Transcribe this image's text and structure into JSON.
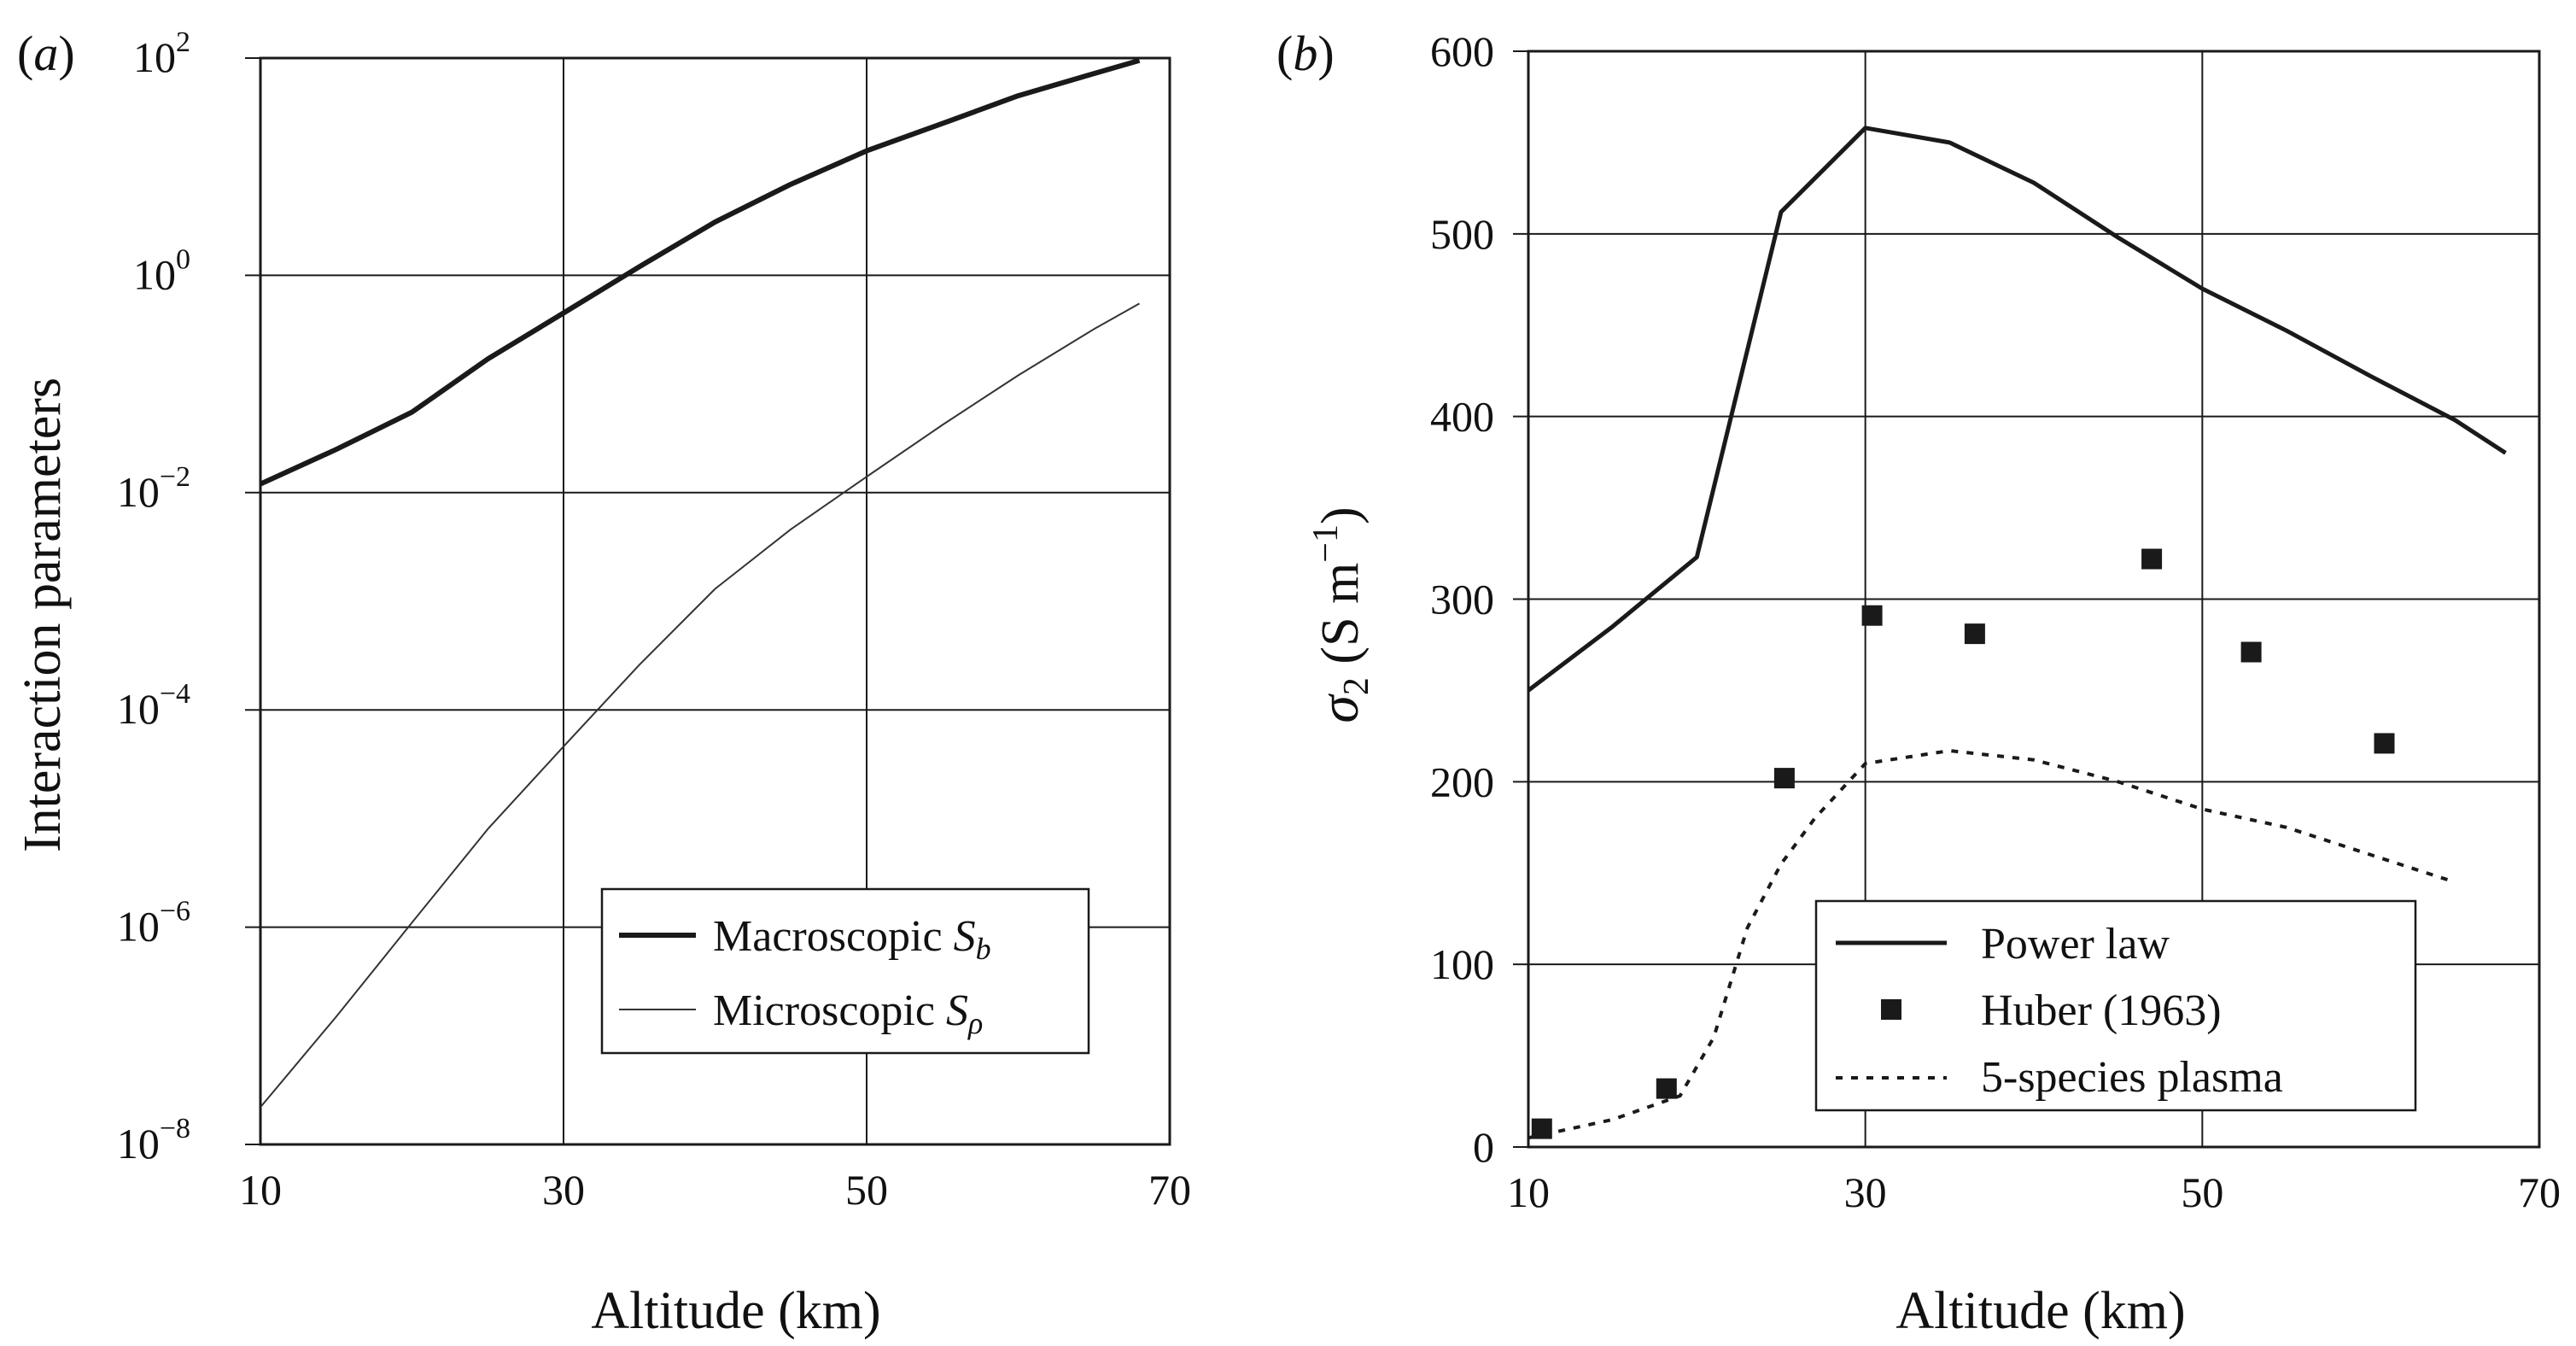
{
  "chart_data": [
    {
      "type": "line",
      "panel_label": "(a)",
      "xlabel": "Altitude (km)",
      "ylabel": "Interaction parameters",
      "xlim": [
        10,
        70
      ],
      "xticks": [
        "10",
        "30",
        "50",
        "70"
      ],
      "yscale": "log",
      "ylim": [
        1e-08,
        100
      ],
      "yticks": [
        {
          "base": "10",
          "exp": "2"
        },
        {
          "base": "10",
          "exp": "0"
        },
        {
          "base": "10",
          "exp": "−2"
        },
        {
          "base": "10",
          "exp": "−4"
        },
        {
          "base": "10",
          "exp": "−6"
        },
        {
          "base": "10",
          "exp": "−8"
        }
      ],
      "grid": true,
      "legend_position": "lower-right",
      "series": [
        {
          "name": "Macroscopic",
          "symbol": "S",
          "subscript": "b",
          "style": "thick-solid",
          "color": "#1a1a1a",
          "x": [
            10,
            15,
            20,
            25,
            30,
            35,
            40,
            45,
            50,
            55,
            60,
            65,
            68
          ],
          "y": [
            0.012,
            0.025,
            0.055,
            0.17,
            0.45,
            1.2,
            3.1,
            6.9,
            14,
            25,
            45,
            72,
            95
          ]
        },
        {
          "name": "Microscopic",
          "symbol": "S",
          "subscript": "ρ",
          "style": "thin-solid",
          "color": "#333333",
          "x": [
            10,
            15,
            20,
            25,
            30,
            35,
            40,
            45,
            50,
            55,
            60,
            65,
            68
          ],
          "y": [
            2.2e-08,
            1.5e-07,
            1.1e-06,
            8e-06,
            4.6e-05,
            0.00026,
            0.0013,
            0.0046,
            0.014,
            0.042,
            0.12,
            0.32,
            0.55
          ]
        }
      ]
    },
    {
      "type": "line",
      "panel_label": "(b)",
      "xlabel": "Altitude (km)",
      "ylabel_symbol": "σ",
      "ylabel_subscript": "2",
      "ylabel_units": "(S m",
      "ylabel_exp": "−1",
      "ylabel_close": ")",
      "xlim": [
        10,
        70
      ],
      "xticks": [
        "10",
        "30",
        "50",
        "70"
      ],
      "ylim": [
        0,
        600
      ],
      "yticks": [
        "0",
        "100",
        "200",
        "300",
        "400",
        "500",
        "600"
      ],
      "grid": true,
      "legend_position": "lower-center",
      "series": [
        {
          "name": "Power law",
          "style": "solid-line",
          "color": "#1a1a1a",
          "x": [
            10,
            15,
            20,
            25,
            30,
            35,
            40,
            45,
            50,
            55,
            60,
            65,
            68
          ],
          "y": [
            250,
            285,
            323,
            512,
            558,
            550,
            528,
            498,
            470,
            447,
            422,
            398,
            380
          ]
        },
        {
          "name": "Huber (1963)",
          "style": "square-markers",
          "color": "#1a1a1a",
          "x": [
            10.8,
            18.2,
            25.2,
            30.4,
            36.5,
            47,
            52.9,
            60.8
          ],
          "y": [
            10,
            32,
            202,
            291,
            281,
            322,
            271,
            221
          ]
        },
        {
          "name": "5-species plasma",
          "style": "dotted-line",
          "color": "#1a1a1a",
          "x": [
            10,
            15,
            19,
            21,
            23,
            25,
            27,
            30,
            35,
            40,
            45,
            50,
            55,
            60,
            65
          ],
          "y": [
            5,
            15,
            28,
            60,
            120,
            155,
            180,
            210,
            217,
            212,
            200,
            185,
            175,
            160,
            145
          ]
        }
      ]
    }
  ]
}
